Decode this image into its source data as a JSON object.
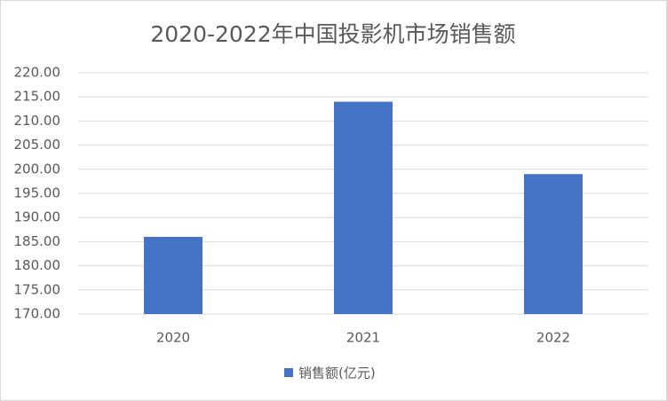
{
  "chart_data": {
    "type": "bar",
    "title": "2020-2022年中国投影机市场销售额",
    "categories": [
      "2020",
      "2021",
      "2022"
    ],
    "series": [
      {
        "name": "销售额(亿元)",
        "color": "#4472c4",
        "values": [
          186,
          214,
          199
        ]
      }
    ],
    "ylim": [
      170,
      220
    ],
    "yticks": [
      {
        "value": 170,
        "label": "170.00"
      },
      {
        "value": 175,
        "label": "175.00"
      },
      {
        "value": 180,
        "label": "180.00"
      },
      {
        "value": 185,
        "label": "185.00"
      },
      {
        "value": 190,
        "label": "190.00"
      },
      {
        "value": 195,
        "label": "195.00"
      },
      {
        "value": 200,
        "label": "200.00"
      },
      {
        "value": 205,
        "label": "205.00"
      },
      {
        "value": 210,
        "label": "210.00"
      },
      {
        "value": 215,
        "label": "215.00"
      },
      {
        "value": 220,
        "label": "220.00"
      }
    ],
    "grid": true,
    "legend": "bottom"
  }
}
